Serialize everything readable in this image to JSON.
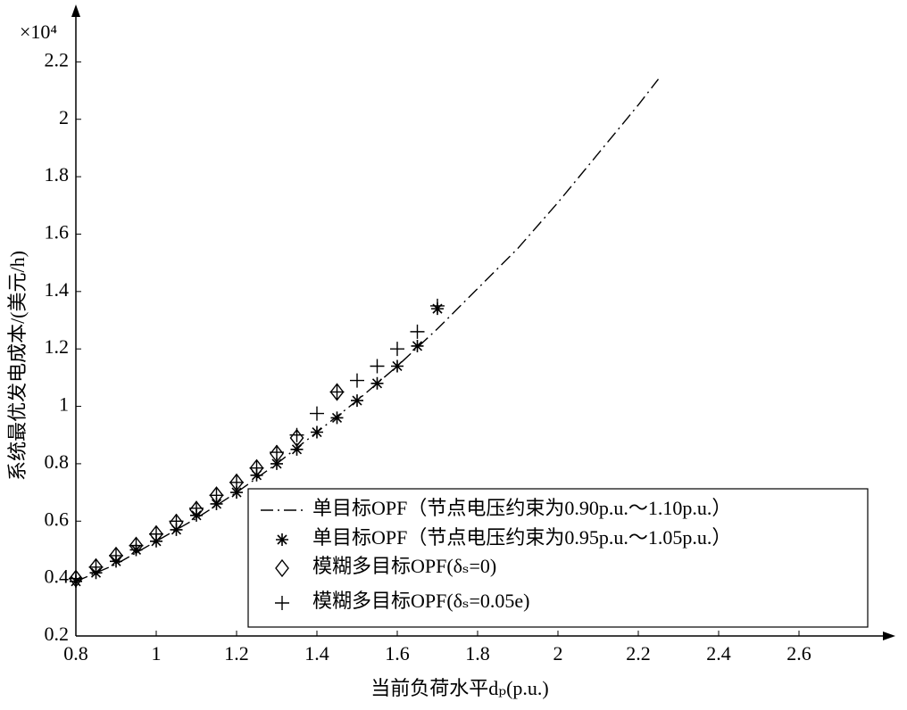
{
  "chart_data": {
    "type": "line",
    "y_scale_label": "×10⁴",
    "x_label": "当前负荷水平dₚ(p.u.)",
    "y_label": "系统最优发电成本/(美元/h)",
    "xlim": [
      0.8,
      2.84
    ],
    "ylim": [
      0.2,
      2.4
    ],
    "xticks": [
      0.8,
      1,
      1.2,
      1.4,
      1.6,
      1.8,
      2,
      2.2,
      2.4,
      2.6
    ],
    "yticks": [
      0.2,
      0.4,
      0.6,
      0.8,
      1,
      1.2,
      1.4,
      1.6,
      1.8,
      2,
      2.2
    ],
    "grid": false,
    "legend_position": "lower-right",
    "series": [
      {
        "name": "单目标OPF（节点电压约束为0.90p.u.～1.10p.u.）",
        "color": "#000000",
        "linestyle": "dashdot",
        "marker": "none",
        "x": [
          0.8,
          0.9,
          1.0,
          1.1,
          1.2,
          1.3,
          1.4,
          1.5,
          1.6,
          1.7,
          1.8,
          1.9,
          2.0,
          2.1,
          2.2,
          2.25
        ],
        "values": [
          0.39,
          0.45,
          0.53,
          0.61,
          0.7,
          0.8,
          0.91,
          1.02,
          1.14,
          1.27,
          1.41,
          1.55,
          1.71,
          1.88,
          2.05,
          2.14
        ]
      },
      {
        "name": "单目标OPF（节点电压约束为0.95p.u.～1.05p.u.）",
        "color": "#000000",
        "linestyle": "none",
        "marker": "star",
        "x": [
          0.8,
          0.85,
          0.9,
          0.95,
          1.0,
          1.05,
          1.1,
          1.15,
          1.2,
          1.25,
          1.3,
          1.35,
          1.4,
          1.45,
          1.5,
          1.55,
          1.6,
          1.65,
          1.7
        ],
        "values": [
          0.39,
          0.42,
          0.46,
          0.5,
          0.53,
          0.57,
          0.62,
          0.66,
          0.7,
          0.76,
          0.8,
          0.85,
          0.91,
          0.96,
          1.02,
          1.08,
          1.14,
          1.21,
          1.34
        ]
      },
      {
        "name": "模糊多目标OPF(δₛ=0)",
        "color": "#000000",
        "linestyle": "none",
        "marker": "diamond",
        "x": [
          0.8,
          0.85,
          0.9,
          0.95,
          1.0,
          1.05,
          1.1,
          1.15,
          1.2,
          1.25,
          1.3,
          1.35,
          1.45
        ],
        "values": [
          0.4,
          0.44,
          0.48,
          0.515,
          0.555,
          0.595,
          0.64,
          0.69,
          0.735,
          0.785,
          0.835,
          0.89,
          1.05
        ]
      },
      {
        "name": "模糊多目标OPF(δₛ=0.05e)",
        "color": "#000000",
        "linestyle": "none",
        "marker": "plus",
        "x": [
          0.8,
          0.85,
          0.9,
          0.95,
          1.0,
          1.05,
          1.1,
          1.15,
          1.2,
          1.25,
          1.3,
          1.35,
          1.4,
          1.45,
          1.5,
          1.55,
          1.6,
          1.65,
          1.7
        ],
        "values": [
          0.4,
          0.44,
          0.48,
          0.515,
          0.555,
          0.6,
          0.645,
          0.69,
          0.735,
          0.785,
          0.84,
          0.9,
          0.975,
          1.05,
          1.09,
          1.14,
          1.2,
          1.26,
          1.35
        ]
      }
    ]
  }
}
